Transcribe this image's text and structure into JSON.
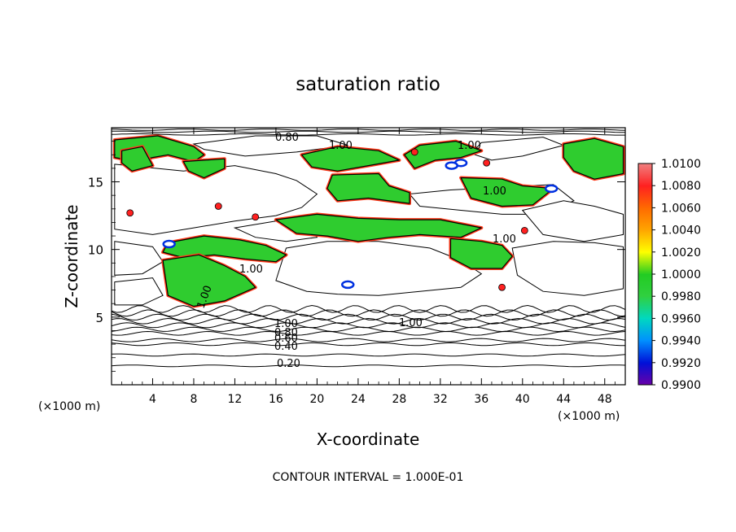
{
  "chart_data": {
    "type": "heatmap",
    "title": "saturation ratio",
    "xlabel": "X-coordinate",
    "ylabel": "Z-coordinate",
    "x_unit": "(×1000 m)",
    "x_unit_right": "(×1000 m)",
    "xlim": [
      0,
      50
    ],
    "ylim": [
      0,
      19
    ],
    "x_ticks": [
      "4",
      "8",
      "12",
      "16",
      "20",
      "24",
      "28",
      "32",
      "36",
      "40",
      "44",
      "48"
    ],
    "y_ticks": [
      "5",
      "10",
      "15"
    ],
    "colorbar_labels": [
      "1.0100",
      "1.0080",
      "1.0060",
      "1.0040",
      "1.0020",
      "1.0000",
      "0.9980",
      "0.9960",
      "0.9940",
      "0.9920",
      "0.9900"
    ],
    "colorbar_colors": [
      "#f08080",
      "#ff2020",
      "#ff6a00",
      "#ffa500",
      "#ffff00",
      "#22cc22",
      "#30d040",
      "#00d8c0",
      "#0090ff",
      "#0010d8",
      "#6a00a8"
    ],
    "contour_labels": [
      "0.80",
      "1.00",
      "1.00",
      "1.00",
      "1.00",
      "1.00",
      "1.00",
      "1.00",
      "1.00",
      "0.80",
      "0.60",
      "0.40",
      "0.20"
    ],
    "contour_interval": "CONTOUR INTERVAL = 1.000E-01",
    "green_regions": [
      [
        [
          0.3,
          18.1
        ],
        [
          4.5,
          18.4
        ],
        [
          8,
          17.6
        ],
        [
          9,
          17
        ],
        [
          8,
          16.5
        ],
        [
          5.5,
          17
        ],
        [
          4,
          16.8
        ],
        [
          2.5,
          16.5
        ],
        [
          0.3,
          16.8
        ]
      ],
      [
        [
          7,
          16.5
        ],
        [
          11,
          16.7
        ],
        [
          11,
          16
        ],
        [
          9,
          15.3
        ],
        [
          7.5,
          15.8
        ]
      ],
      [
        [
          18.5,
          17
        ],
        [
          22,
          17.6
        ],
        [
          26,
          17.3
        ],
        [
          28,
          16.6
        ],
        [
          25,
          16.2
        ],
        [
          22,
          15.8
        ],
        [
          19.5,
          16.1
        ]
      ],
      [
        [
          21.5,
          15.5
        ],
        [
          26,
          15.6
        ],
        [
          27,
          14.7
        ],
        [
          29,
          14.2
        ],
        [
          29,
          13.4
        ],
        [
          25,
          13.8
        ],
        [
          22,
          13.6
        ],
        [
          21,
          14.5
        ]
      ],
      [
        [
          28.5,
          17
        ],
        [
          30,
          17.7
        ],
        [
          33.5,
          18
        ],
        [
          36,
          17.3
        ],
        [
          34,
          16.8
        ],
        [
          31.5,
          16.6
        ],
        [
          29.5,
          16
        ]
      ],
      [
        [
          34,
          15.3
        ],
        [
          38,
          15.2
        ],
        [
          40,
          14.7
        ],
        [
          43,
          14.5
        ],
        [
          41,
          13.3
        ],
        [
          38,
          13.2
        ],
        [
          35,
          13.8
        ]
      ],
      [
        [
          44,
          17.8
        ],
        [
          47,
          18.2
        ],
        [
          49.8,
          17.6
        ],
        [
          49.8,
          15.6
        ],
        [
          47,
          15.2
        ],
        [
          45,
          15.8
        ],
        [
          44,
          16.8
        ]
      ],
      [
        [
          16,
          12.2
        ],
        [
          20,
          12.6
        ],
        [
          24,
          12.3
        ],
        [
          28,
          12.2
        ],
        [
          32,
          12.2
        ],
        [
          36,
          11.6
        ],
        [
          34,
          10.9
        ],
        [
          30,
          11.1
        ],
        [
          27,
          10.9
        ],
        [
          24,
          10.6
        ],
        [
          21,
          11
        ],
        [
          18,
          11.2
        ]
      ],
      [
        [
          5.5,
          10.5
        ],
        [
          9,
          11
        ],
        [
          12.5,
          10.7
        ],
        [
          15,
          10.3
        ],
        [
          17,
          9.6
        ],
        [
          16,
          9.1
        ],
        [
          13,
          9.3
        ],
        [
          10,
          9.6
        ],
        [
          7,
          9.4
        ],
        [
          5,
          9.8
        ]
      ],
      [
        [
          33,
          10.8
        ],
        [
          36,
          10.6
        ],
        [
          38,
          10.3
        ],
        [
          39,
          9.5
        ],
        [
          38,
          8.6
        ],
        [
          35,
          8.6
        ],
        [
          33,
          9.4
        ]
      ],
      [
        [
          5,
          9.2
        ],
        [
          8.5,
          9.6
        ],
        [
          11,
          8.8
        ],
        [
          13,
          8
        ],
        [
          14,
          7.2
        ],
        [
          11,
          6.2
        ],
        [
          8,
          5.8
        ],
        [
          5.5,
          6.6
        ]
      ],
      [
        [
          1,
          17.3
        ],
        [
          3,
          17.6
        ],
        [
          4,
          16.2
        ],
        [
          2,
          15.8
        ],
        [
          1,
          16.4
        ]
      ]
    ],
    "white_regions": [
      [
        [
          0.3,
          16.3
        ],
        [
          7,
          15.8
        ],
        [
          12,
          16.2
        ],
        [
          16,
          15.6
        ],
        [
          18,
          15.1
        ],
        [
          20,
          14.1
        ],
        [
          18.5,
          13.1
        ],
        [
          16,
          12.5
        ],
        [
          12,
          12.1
        ],
        [
          8,
          11.6
        ],
        [
          4,
          11.1
        ],
        [
          0.3,
          11.5
        ]
      ],
      [
        [
          8,
          17.8
        ],
        [
          14,
          18.4
        ],
        [
          20,
          18.4
        ],
        [
          23,
          17.7
        ],
        [
          18,
          17.2
        ],
        [
          13,
          16.9
        ],
        [
          9,
          17.4
        ]
      ],
      [
        [
          36,
          17.9
        ],
        [
          42,
          18.3
        ],
        [
          44,
          17.7
        ],
        [
          40,
          16.9
        ],
        [
          37,
          16.6
        ],
        [
          35,
          17.1
        ]
      ],
      [
        [
          29,
          14.1
        ],
        [
          33,
          14.4
        ],
        [
          38,
          14.6
        ],
        [
          43,
          14.8
        ],
        [
          45,
          13.6
        ],
        [
          42,
          12.6
        ],
        [
          38,
          12.6
        ],
        [
          34,
          12.9
        ],
        [
          30,
          13.2
        ]
      ],
      [
        [
          40,
          12.9
        ],
        [
          44,
          13.6
        ],
        [
          47,
          13.2
        ],
        [
          49.8,
          12.6
        ],
        [
          49.8,
          11.1
        ],
        [
          46,
          10.6
        ],
        [
          42,
          11.1
        ]
      ],
      [
        [
          0.3,
          10.6
        ],
        [
          4,
          10.2
        ],
        [
          5,
          9.1
        ],
        [
          3,
          8.2
        ],
        [
          0.3,
          8.1
        ]
      ],
      [
        [
          12,
          11.6
        ],
        [
          16,
          12.1
        ],
        [
          19,
          11.8
        ],
        [
          20,
          10.9
        ],
        [
          17,
          10.6
        ],
        [
          14,
          10.9
        ]
      ],
      [
        [
          17,
          10.1
        ],
        [
          21,
          10.6
        ],
        [
          26,
          10.6
        ],
        [
          31,
          10.1
        ],
        [
          34,
          9.2
        ],
        [
          36,
          8.2
        ],
        [
          34,
          7.2
        ],
        [
          30,
          6.9
        ],
        [
          26,
          6.6
        ],
        [
          22,
          6.7
        ],
        [
          19,
          6.9
        ],
        [
          16,
          7.7
        ]
      ],
      [
        [
          39,
          10.1
        ],
        [
          43,
          10.6
        ],
        [
          47,
          10.5
        ],
        [
          49.8,
          10.2
        ],
        [
          49.8,
          7.1
        ],
        [
          46,
          6.6
        ],
        [
          42,
          6.9
        ],
        [
          39.5,
          8.1
        ]
      ],
      [
        [
          0.3,
          7.6
        ],
        [
          4,
          7.9
        ],
        [
          5,
          6.6
        ],
        [
          3,
          5.9
        ],
        [
          0.3,
          5.9
        ]
      ]
    ],
    "red_specks": [
      [
        29.5,
        17.2
      ],
      [
        36.5,
        16.4
      ],
      [
        10.4,
        13.2
      ],
      [
        1.8,
        12.7
      ],
      [
        14,
        12.4
      ],
      [
        40.2,
        11.4
      ],
      [
        38,
        7.2
      ]
    ],
    "blue_specks": [
      [
        34,
        16.4
      ],
      [
        42.8,
        14.5
      ],
      [
        5.6,
        10.4
      ],
      [
        33.1,
        16.2
      ],
      [
        23,
        7.4
      ]
    ]
  }
}
